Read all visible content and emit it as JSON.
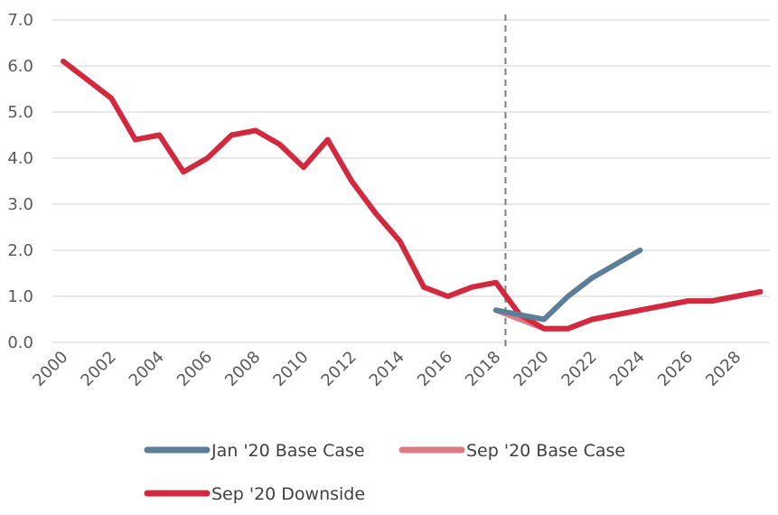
{
  "chart_data": {
    "type": "line",
    "title": "",
    "xlabel": "",
    "ylabel": "",
    "x_ticks": [
      "2000",
      "2002",
      "2004",
      "2006",
      "2008",
      "2010",
      "2012",
      "2014",
      "2016",
      "2018",
      "2020",
      "2022",
      "2024",
      "2026",
      "2028"
    ],
    "y_ticks": [
      "0.0",
      "1.0",
      "2.0",
      "3.0",
      "4.0",
      "5.0",
      "6.0",
      "7.0"
    ],
    "xlim": [
      2000,
      2029
    ],
    "ylim": [
      0,
      7
    ],
    "grid": true,
    "legend_position": "bottom",
    "vertical_marker_x": 2018.4,
    "series": [
      {
        "name": "Jan '20 Base Case",
        "color": "#5b7f96",
        "x": [
          2018,
          2019,
          2020,
          2021,
          2022,
          2023,
          2024
        ],
        "values": [
          0.7,
          0.6,
          0.5,
          1.0,
          1.4,
          1.7,
          2.0
        ]
      },
      {
        "name": "Sep '20 Base Case",
        "color": "#e07a85",
        "x": [
          2018,
          2019,
          2020,
          2021,
          2022,
          2023,
          2024,
          2025,
          2026,
          2027,
          2028,
          2029
        ],
        "values": [
          0.7,
          0.5,
          0.3,
          0.3,
          0.5,
          0.6,
          0.7,
          0.8,
          0.9,
          0.9,
          1.0,
          1.1
        ]
      },
      {
        "name": "Sep '20 Downside",
        "color": "#d2293f",
        "x": [
          2000,
          2001,
          2002,
          2003,
          2004,
          2005,
          2006,
          2007,
          2008,
          2009,
          2010,
          2011,
          2012,
          2013,
          2014,
          2015,
          2016,
          2017,
          2018,
          2019,
          2020,
          2021,
          2022,
          2023,
          2024,
          2025,
          2026,
          2027,
          2028,
          2029
        ],
        "values": [
          6.1,
          5.7,
          5.3,
          4.4,
          4.5,
          3.7,
          4.0,
          4.5,
          4.6,
          4.3,
          3.8,
          4.4,
          3.5,
          2.8,
          2.2,
          1.2,
          1.0,
          1.2,
          1.3,
          0.6,
          0.3,
          0.3,
          0.5,
          0.6,
          0.7,
          0.8,
          0.9,
          0.9,
          1.0,
          1.1
        ]
      }
    ]
  }
}
